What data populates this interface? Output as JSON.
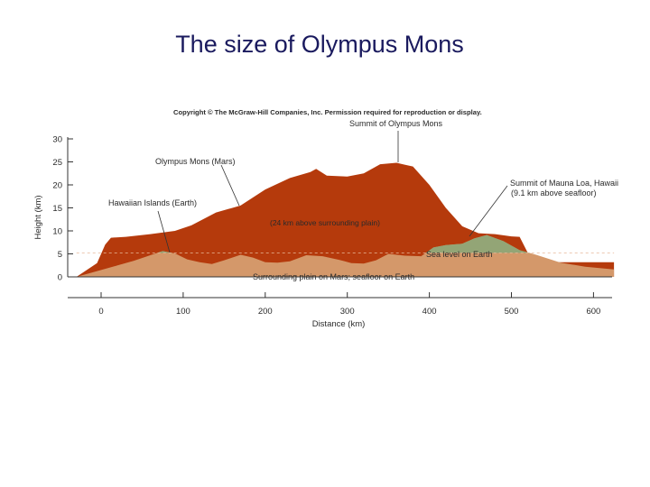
{
  "slide": {
    "title": "The size of Olympus Mons"
  },
  "figure": {
    "copyright": "Copyright © The McGraw-Hill Companies, Inc. Permission required for reproduction or display.",
    "labels": {
      "summit_olympus": "Summit of Olympus Mons",
      "olympus_mars": "Olympus Mons (Mars)",
      "hawaiian": "Hawaiian Islands (Earth)",
      "above_plain": "(24 km above surrounding plain)",
      "mauna_loa_1": "Summit of Mauna Loa, Hawaii",
      "mauna_loa_2": "(9.1 km above seafloor)",
      "sea_level": "Sea level on Earth",
      "plain": "Surrounding plain on Mars; seafloor on Earth"
    },
    "colors": {
      "mars": "#b53a0c",
      "earth": "#d4986a",
      "hawaii_green": "#93a576"
    }
  },
  "chart_data": {
    "type": "area",
    "xlabel": "Distance (km)",
    "ylabel": "Height (km)",
    "xlim": [
      -40,
      625
    ],
    "ylim": [
      0,
      30
    ],
    "x_ticks": [
      "0",
      "100",
      "200",
      "300",
      "400",
      "500",
      "600"
    ],
    "y_ticks": [
      "0",
      "5",
      "10",
      "15",
      "20",
      "25",
      "30"
    ],
    "series": [
      {
        "name": "Olympus Mons (Mars)",
        "x": [
          -30,
          -5,
          5,
          12,
          30,
          60,
          90,
          110,
          140,
          170,
          200,
          230,
          255,
          262,
          275,
          300,
          320,
          340,
          360,
          370,
          380,
          400,
          420,
          440,
          460,
          480,
          500,
          510,
          520,
          540,
          560,
          580,
          600,
          625
        ],
        "y": [
          0,
          3,
          7,
          8.5,
          8.7,
          9.3,
          10,
          11.2,
          14,
          15.5,
          19,
          21.5,
          22.8,
          23.5,
          22,
          21.8,
          22.5,
          24.5,
          24.8,
          24.4,
          24,
          20,
          15,
          11,
          9.5,
          9.3,
          8.8,
          8.7,
          5.2,
          3.2,
          3.2,
          3.2,
          3.2,
          3.2
        ]
      },
      {
        "name": "Surrounding plain on Mars; seafloor on Earth",
        "x": [
          -30,
          0,
          20,
          40,
          60,
          75,
          90,
          105,
          120,
          135,
          150,
          170,
          185,
          200,
          215,
          230,
          250,
          270,
          290,
          305,
          320,
          335,
          350,
          370,
          390,
          405,
          420,
          440,
          455,
          470,
          490,
          510,
          530,
          560,
          590,
          625
        ],
        "y": [
          0,
          1.5,
          2.5,
          3.5,
          4.7,
          5.6,
          5.1,
          3.8,
          3.2,
          2.8,
          3.6,
          4.8,
          4.2,
          3.2,
          3.1,
          3.4,
          4.7,
          4.5,
          3.7,
          3.0,
          2.9,
          3.6,
          5.0,
          4.6,
          4.5,
          6.4,
          6.9,
          7.2,
          8.4,
          9.1,
          7.8,
          5.8,
          4.8,
          3.1,
          2.2,
          1.6
        ]
      }
    ],
    "annotations": [
      "Summit of Olympus Mons",
      "Olympus Mons (Mars)",
      "Hawaiian Islands (Earth)",
      "(24 km above surrounding plain)",
      "Summit of Mauna Loa, Hawaii",
      "(9.1 km above seafloor)",
      "Sea level on Earth",
      "Surrounding plain on Mars; seafloor on Earth"
    ]
  }
}
